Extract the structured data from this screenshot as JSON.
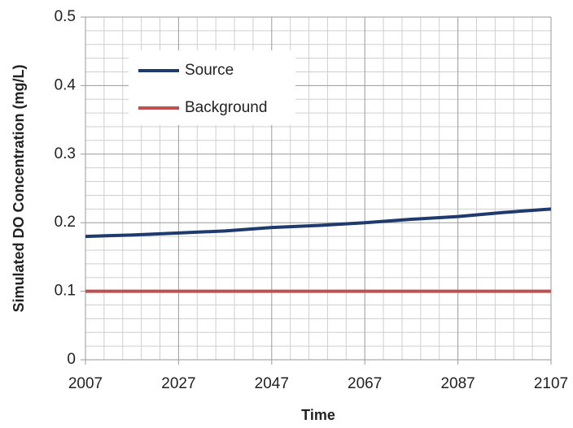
{
  "chart_data": {
    "type": "line",
    "x_label": "Time",
    "y_label": "Simulated DO Concentration (mg/L)",
    "x": [
      2007,
      2017,
      2027,
      2037,
      2047,
      2057,
      2067,
      2077,
      2087,
      2097,
      2107
    ],
    "series": [
      {
        "name": "Source",
        "color": "#1f3b6e",
        "values": [
          0.18,
          0.182,
          0.185,
          0.188,
          0.193,
          0.196,
          0.2,
          0.205,
          0.209,
          0.215,
          0.22
        ]
      },
      {
        "name": "Background",
        "color": "#c0504d",
        "values": [
          0.1,
          0.1,
          0.1,
          0.1,
          0.1,
          0.1,
          0.1,
          0.1,
          0.1,
          0.1,
          0.1
        ]
      }
    ],
    "xlim": [
      2007,
      2107
    ],
    "xticks": [
      2007,
      2027,
      2047,
      2067,
      2087,
      2107
    ],
    "minor_xticks": [
      2011,
      2015,
      2019,
      2023,
      2031,
      2035,
      2039,
      2043,
      2051,
      2055,
      2059,
      2063,
      2071,
      2075,
      2079,
      2083,
      2091,
      2095,
      2099,
      2103
    ],
    "ylim": [
      0,
      0.5
    ],
    "yticks": [
      0,
      0.1,
      0.2,
      0.3,
      0.4,
      0.5
    ],
    "minor_yticks": [
      0.02,
      0.04,
      0.06,
      0.08,
      0.12,
      0.14,
      0.16,
      0.18,
      0.22,
      0.24,
      0.26,
      0.28,
      0.32,
      0.34,
      0.36,
      0.38,
      0.42,
      0.44,
      0.46,
      0.48
    ],
    "grid": true,
    "legend": "upper left"
  }
}
